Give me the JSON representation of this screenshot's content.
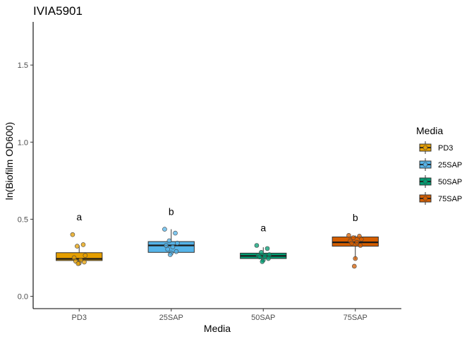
{
  "chart_data": {
    "type": "boxplot",
    "title": "IVIA5901",
    "xlabel": "Media",
    "ylabel": "ln(Biofilm OD600)",
    "ylim": [
      -0.08,
      1.78
    ],
    "yticks": [
      0.0,
      0.5,
      1.0,
      1.5
    ],
    "ytick_labels": [
      "0.0",
      "0.5",
      "1.0",
      "1.5"
    ],
    "grid": false,
    "legend": {
      "title": "Media",
      "position": "right",
      "entries": [
        "PD3",
        "25SAP",
        "50SAP",
        "75SAP"
      ]
    },
    "categories": [
      "PD3",
      "25SAP",
      "50SAP",
      "75SAP"
    ],
    "series": [
      {
        "name": "PD3",
        "color": "#E69F00",
        "box": {
          "q1": 0.232,
          "median": 0.243,
          "q3": 0.283,
          "whisker_low": 0.21,
          "whisker_high": 0.328
        },
        "points": [
          0.4,
          0.335,
          0.325,
          0.265,
          0.25,
          0.235,
          0.228,
          0.222,
          0.215,
          0.212
        ],
        "significance": "a",
        "significance_y": 0.515
      },
      {
        "name": "25SAP",
        "color": "#56B4E9",
        "box": {
          "q1": 0.285,
          "median": 0.33,
          "q3": 0.355,
          "whisker_low": 0.27,
          "whisker_high": 0.435
        },
        "points": [
          0.435,
          0.41,
          0.36,
          0.345,
          0.33,
          0.32,
          0.305,
          0.29,
          0.28,
          0.27
        ],
        "significance": "b",
        "significance_y": 0.55
      },
      {
        "name": "50SAP",
        "color": "#009E73",
        "box": {
          "q1": 0.245,
          "median": 0.262,
          "q3": 0.28,
          "whisker_low": 0.225,
          "whisker_high": 0.318
        },
        "points": [
          0.33,
          0.31,
          0.285,
          0.27,
          0.265,
          0.26,
          0.255,
          0.245,
          0.235,
          0.225
        ],
        "significance": "a",
        "significance_y": 0.445
      },
      {
        "name": "75SAP",
        "color": "#D55E00",
        "box": {
          "q1": 0.325,
          "median": 0.35,
          "q3": 0.385,
          "whisker_low": 0.24,
          "whisker_high": 0.395
        },
        "points": [
          0.395,
          0.39,
          0.38,
          0.37,
          0.36,
          0.35,
          0.345,
          0.33,
          0.245,
          0.195
        ],
        "significance": "b",
        "significance_y": 0.51
      }
    ]
  }
}
